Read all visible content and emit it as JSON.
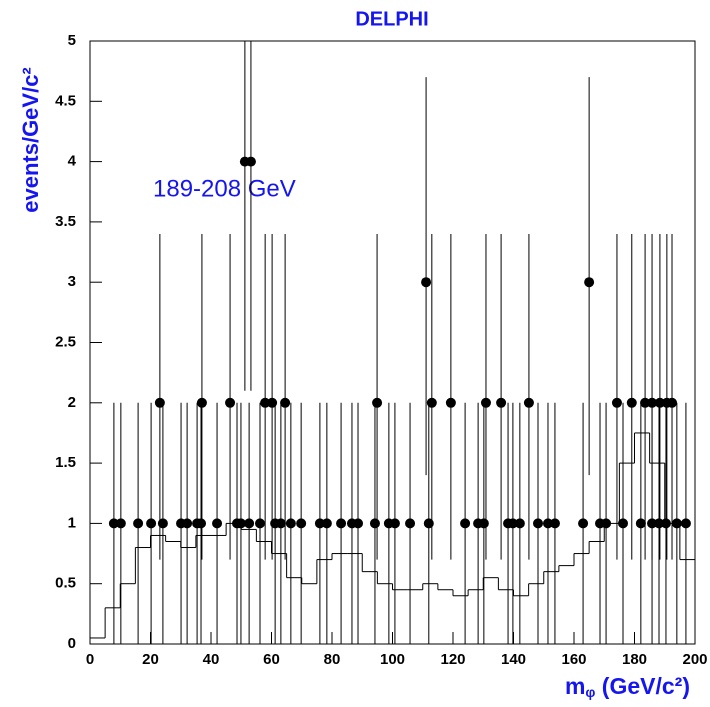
{
  "chart_data": {
    "type": "errorbar",
    "title": "DELPHI",
    "y_label": "events/GeV/c²",
    "annotation": "189-208 GeV",
    "x_label": "m",
    "x_label_sub": "φ",
    "x_label_rest": " (GeV/c²)",
    "xlim": [
      0,
      200
    ],
    "ylim": [
      0,
      5
    ],
    "xticks": [
      0,
      20,
      40,
      60,
      80,
      100,
      120,
      140,
      160,
      180,
      200
    ],
    "yticks": [
      0,
      0.5,
      1,
      1.5,
      2,
      2.5,
      3,
      3.5,
      4,
      4.5,
      5
    ],
    "color": "#000000",
    "x": [
      7.9,
      10.2,
      15.9,
      20.2,
      24.1,
      30.1,
      32.1,
      35.4,
      36.7,
      42,
      48.6,
      49.9,
      52.6,
      56.2,
      61.2,
      63.1,
      66.4,
      69.8,
      76,
      78.3,
      83,
      86.6,
      88.6,
      94.2,
      98.8,
      100.8,
      105.8,
      112,
      124,
      128.3,
      130.2,
      138.2,
      139.8,
      142.1,
      148.1,
      151.4,
      153.7,
      163,
      168.6,
      170.6,
      176.2,
      182.1,
      185.8,
      188.1,
      190.4,
      194,
      197,
      23.1,
      37,
      46.3,
      57.9,
      60.2,
      64.5,
      94.9,
      113,
      119.3,
      130.9,
      135.9,
      145.1,
      174.2,
      179.1,
      183.5,
      185.8,
      188.4,
      190.7,
      192.4,
      111.1,
      165,
      51.2,
      53.2
    ],
    "values": [
      1,
      1,
      1,
      1,
      1,
      1,
      1,
      1,
      1,
      1,
      1,
      1,
      1,
      1,
      1,
      1,
      1,
      1,
      1,
      1,
      1,
      1,
      1,
      1,
      1,
      1,
      1,
      1,
      1,
      1,
      1,
      1,
      1,
      1,
      1,
      1,
      1,
      1,
      1,
      1,
      1,
      1,
      1,
      1,
      1,
      1,
      1,
      2,
      2,
      2,
      2,
      2,
      2,
      2,
      2,
      2,
      2,
      2,
      2,
      2,
      2,
      2,
      2,
      2,
      2,
      2,
      3,
      3,
      4,
      4
    ],
    "err_low": [
      1,
      1,
      1,
      1,
      1,
      1,
      1,
      1,
      1,
      1,
      1,
      1,
      1,
      1,
      1,
      1,
      1,
      1,
      1,
      1,
      1,
      1,
      1,
      1,
      1,
      1,
      1,
      1,
      1,
      1,
      1,
      1,
      1,
      1,
      1,
      1,
      1,
      1,
      1,
      1,
      1,
      1,
      1,
      1,
      1,
      1,
      1,
      1.3,
      1.3,
      1.3,
      1.3,
      1.3,
      1.3,
      1.3,
      1.3,
      1.3,
      1.3,
      1.3,
      1.3,
      1.3,
      1.3,
      1.3,
      1.3,
      1.3,
      1.3,
      1.3,
      1.6,
      1.6,
      1.9,
      1.9
    ],
    "err_high": [
      1,
      1,
      1,
      1,
      1,
      1,
      1,
      1,
      1,
      1,
      1,
      1,
      1,
      1,
      1,
      1,
      1,
      1,
      1,
      1,
      1,
      1,
      1,
      1,
      1,
      1,
      1,
      1,
      1,
      1,
      1,
      1,
      1,
      1,
      1,
      1,
      1,
      1,
      1,
      1,
      1,
      1,
      1,
      1,
      1,
      1,
      1,
      1.4,
      1.4,
      1.4,
      1.4,
      1.4,
      1.4,
      1.4,
      1.4,
      1.4,
      1.4,
      1.4,
      1.4,
      1.4,
      1.4,
      1.4,
      1.4,
      1.4,
      1.4,
      1.4,
      1.7,
      1.7,
      2.2,
      2.2
    ],
    "histogram": {
      "bins": [
        0,
        5,
        10,
        15,
        20,
        25,
        30,
        35,
        40,
        45,
        50,
        55,
        60,
        65,
        70,
        75,
        80,
        85,
        90,
        95,
        100,
        105,
        110,
        115,
        120,
        125,
        130,
        135,
        140,
        145,
        150,
        155,
        160,
        165,
        170,
        175,
        180,
        185,
        190,
        195,
        200
      ],
      "counts": [
        0.05,
        0.3,
        0.5,
        0.8,
        0.9,
        0.85,
        0.8,
        0.9,
        0.9,
        1.0,
        0.95,
        0.85,
        0.75,
        0.55,
        0.5,
        0.7,
        0.75,
        0.75,
        0.6,
        0.5,
        0.45,
        0.45,
        0.5,
        0.45,
        0.4,
        0.45,
        0.55,
        0.45,
        0.4,
        0.5,
        0.6,
        0.65,
        0.75,
        0.85,
        1.0,
        1.5,
        1.75,
        1.5,
        1.0,
        0.7
      ]
    }
  }
}
